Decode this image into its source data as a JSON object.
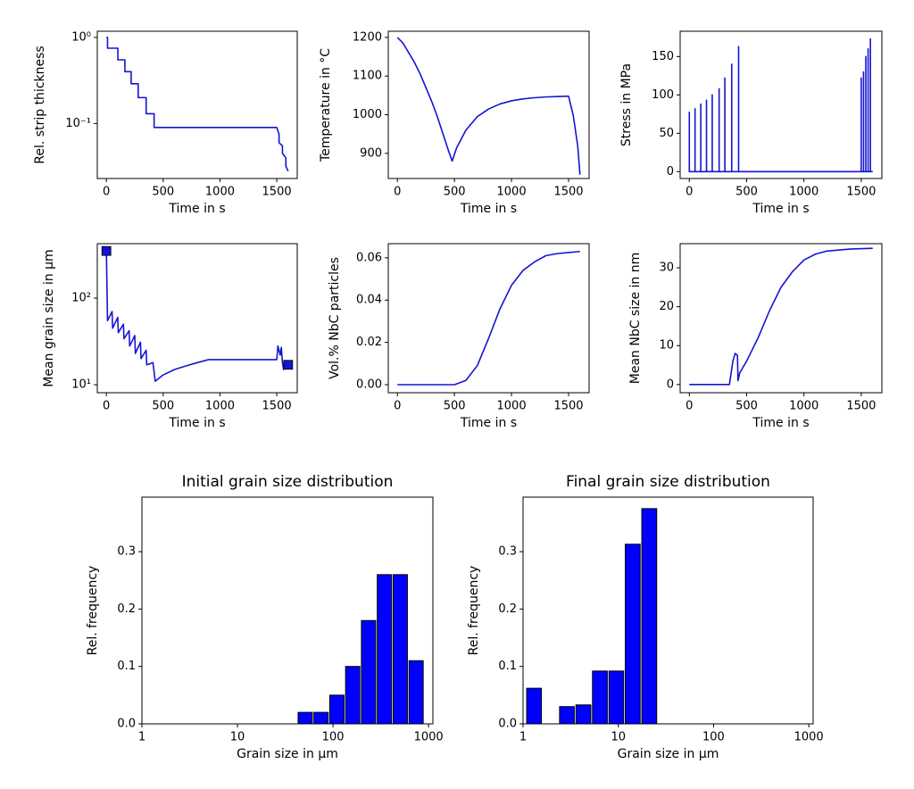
{
  "chart_data": [
    {
      "type": "line",
      "xlabel": "Time in s",
      "ylabel": "Rel. strip thickness",
      "color": "#1414d2",
      "x": [
        0,
        10,
        10,
        101,
        101,
        163,
        163,
        218,
        218,
        280,
        280,
        350,
        350,
        420,
        420,
        1500,
        1520,
        1520,
        1550,
        1550,
        1580,
        1580,
        1600
      ],
      "values": [
        1.0,
        1.0,
        0.75,
        0.75,
        0.55,
        0.55,
        0.4,
        0.4,
        0.29,
        0.29,
        0.2,
        0.2,
        0.13,
        0.13,
        0.09,
        0.09,
        0.075,
        0.06,
        0.055,
        0.045,
        0.04,
        0.032,
        0.028
      ],
      "xlim": [
        -80,
        1680
      ],
      "xticks": [
        0,
        500,
        1000,
        1500
      ],
      "ylim": [
        0.023,
        1.18
      ],
      "yscale": "log",
      "yticks": [
        {
          "value": 1,
          "label": "10⁰"
        },
        {
          "value": 0.1,
          "label": "10⁻¹"
        }
      ]
    },
    {
      "type": "line",
      "xlabel": "Time in s",
      "ylabel": "Temperature in °C",
      "color": "#1414d2",
      "x": [
        0,
        50,
        100,
        150,
        200,
        250,
        300,
        350,
        400,
        450,
        480,
        520,
        600,
        700,
        800,
        900,
        1000,
        1100,
        1200,
        1300,
        1400,
        1500,
        1540,
        1580,
        1600
      ],
      "values": [
        1200,
        1185,
        1160,
        1135,
        1105,
        1070,
        1035,
        995,
        950,
        905,
        880,
        915,
        960,
        995,
        1015,
        1028,
        1036,
        1041,
        1044,
        1046,
        1047,
        1048,
        1000,
        920,
        845
      ],
      "xlim": [
        -80,
        1680
      ],
      "xticks": [
        0,
        500,
        1000,
        1500
      ],
      "ylim": [
        835,
        1216
      ],
      "yticks": [
        900,
        1000,
        1100,
        1200
      ]
    },
    {
      "type": "line",
      "xlabel": "Time in s",
      "ylabel": "Stress in MPa",
      "color": "#1414d2",
      "x": [
        0,
        0,
        50,
        50,
        50,
        100,
        100,
        100,
        150,
        150,
        150,
        200,
        200,
        200,
        260,
        260,
        260,
        310,
        310,
        310,
        370,
        370,
        370,
        430,
        430,
        430,
        1500,
        1500,
        1500,
        1520,
        1520,
        1520,
        1540,
        1540,
        1540,
        1560,
        1560,
        1560,
        1580,
        1580,
        1580,
        1600
      ],
      "values": [
        78,
        0,
        0,
        82,
        0,
        0,
        88,
        0,
        0,
        93,
        0,
        0,
        100,
        0,
        0,
        108,
        0,
        0,
        122,
        0,
        0,
        140,
        0,
        0,
        163,
        0,
        0,
        122,
        0,
        0,
        130,
        0,
        0,
        150,
        0,
        0,
        160,
        0,
        0,
        173,
        0,
        0
      ],
      "xlim": [
        -80,
        1680
      ],
      "xticks": [
        0,
        500,
        1000,
        1500
      ],
      "ylim": [
        -9,
        183
      ],
      "yticks": [
        0,
        50,
        100,
        150
      ]
    },
    {
      "type": "line",
      "xlabel": "Time in s",
      "ylabel": "Mean grain size in µm",
      "series": [
        {
          "color": "#1414d2",
          "x": [
            0,
            10,
            50,
            55,
            100,
            105,
            150,
            155,
            200,
            205,
            250,
            255,
            300,
            305,
            350,
            355,
            410,
            430,
            500,
            600,
            700,
            800,
            900,
            1000,
            1500,
            1510,
            1530,
            1540,
            1550,
            1560,
            1570,
            1600
          ],
          "values": [
            350,
            55,
            70,
            45,
            60,
            40,
            50,
            34,
            42,
            28,
            37,
            23,
            31,
            20,
            25,
            17,
            18,
            11,
            13,
            15,
            16.5,
            18,
            19.5,
            19.5,
            19.5,
            28,
            22,
            27,
            18,
            15,
            18,
            17
          ]
        },
        {
          "color": "#1414d2",
          "marker": "square",
          "x": [
            0,
            1600
          ],
          "values": [
            350,
            17
          ]
        }
      ],
      "xlim": [
        -80,
        1680
      ],
      "xticks": [
        0,
        500,
        1000,
        1500
      ],
      "ylim": [
        8.1,
        425
      ],
      "yscale": "log",
      "yticks": [
        {
          "value": 10,
          "label": "10¹"
        },
        {
          "value": 100,
          "label": "10²"
        }
      ]
    },
    {
      "type": "line",
      "xlabel": "Time in s",
      "ylabel": "Vol.% NbC particles",
      "color": "#1414d2",
      "x": [
        0,
        500,
        600,
        700,
        800,
        900,
        1000,
        1100,
        1200,
        1300,
        1400,
        1500,
        1600
      ],
      "values": [
        0,
        0,
        0.002,
        0.009,
        0.022,
        0.036,
        0.047,
        0.054,
        0.058,
        0.061,
        0.062,
        0.0625,
        0.063
      ],
      "xlim": [
        -80,
        1680
      ],
      "xticks": [
        0,
        500,
        1000,
        1500
      ],
      "ylim": [
        -0.0038,
        0.0667
      ],
      "yticks": [
        {
          "value": 0,
          "label": "0.00"
        },
        {
          "value": 0.02,
          "label": "0.02"
        },
        {
          "value": 0.04,
          "label": "0.04"
        },
        {
          "value": 0.06,
          "label": "0.06"
        }
      ]
    },
    {
      "type": "line",
      "xlabel": "Time in s",
      "ylabel": "Mean NbC size in nm",
      "color": "#1414d2",
      "x": [
        0,
        350,
        360,
        380,
        400,
        420,
        425,
        440,
        500,
        600,
        700,
        800,
        900,
        1000,
        1100,
        1200,
        1400,
        1600
      ],
      "values": [
        0,
        0,
        2,
        6,
        8,
        7.5,
        1,
        3,
        6,
        12,
        19,
        25,
        29,
        32,
        33.5,
        34.3,
        34.8,
        35
      ],
      "xlim": [
        -80,
        1680
      ],
      "xticks": [
        0,
        500,
        1000,
        1500
      ],
      "ylim": [
        -2.1,
        36.2
      ],
      "yticks": [
        0,
        10,
        20,
        30
      ]
    },
    {
      "type": "histogram",
      "title": "Initial grain size distribution",
      "xlabel": "Grain size in µm",
      "ylabel": "Rel. frequency",
      "color": "#0000ff",
      "bins": [
        42.3,
        61.9,
        90.7,
        132.8,
        194.5,
        285,
        418,
        612,
        896
      ],
      "values": [
        0.02,
        0.02,
        0.05,
        0.1,
        0.18,
        0.26,
        0.26,
        0.11
      ],
      "xscale": "log",
      "xlim": [
        1,
        1110
      ],
      "xticks": [
        1,
        10,
        100,
        1000
      ],
      "ylim": [
        0,
        0.395
      ],
      "yticks": [
        {
          "value": 0,
          "label": "0.0"
        },
        {
          "value": 0.1,
          "label": "0.1"
        },
        {
          "value": 0.2,
          "label": "0.2"
        },
        {
          "value": 0.3,
          "label": "0.3"
        }
      ]
    },
    {
      "type": "histogram",
      "title": "Final grain size distribution",
      "xlabel": "Grain size in µm",
      "ylabel": "Rel. frequency",
      "color": "#0000ff",
      "bins": [
        1.07,
        1.59,
        2.37,
        3.52,
        5.25,
        7.82,
        11.6,
        17.3,
        25.8
      ],
      "values": [
        0.062,
        0,
        0.03,
        0.033,
        0.092,
        0.092,
        0.313,
        0.375
      ],
      "xscale": "log",
      "xlim": [
        1,
        1110
      ],
      "xticks": [
        1,
        10,
        100,
        1000
      ],
      "ylim": [
        0,
        0.395
      ],
      "yticks": [
        {
          "value": 0,
          "label": "0.0"
        },
        {
          "value": 0.1,
          "label": "0.1"
        },
        {
          "value": 0.2,
          "label": "0.2"
        },
        {
          "value": 0.3,
          "label": "0.3"
        }
      ]
    }
  ]
}
